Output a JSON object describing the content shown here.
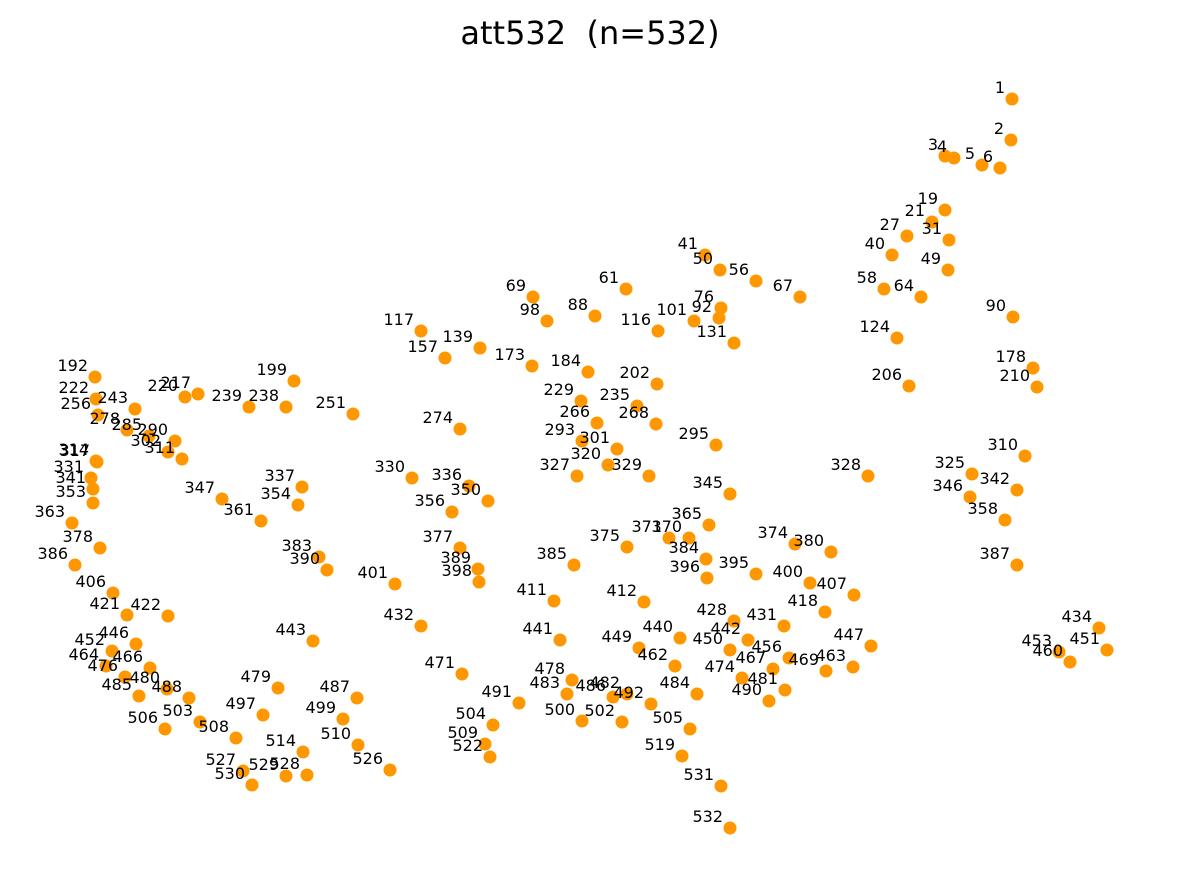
{
  "chart_data": {
    "type": "scatter",
    "title": "att532  (n=532)",
    "xlabel": "",
    "ylabel": "",
    "axes_visible": false,
    "grid": false,
    "point_color": "#FF9800",
    "label_color": "#000000",
    "xlim": [
      0,
      1180
    ],
    "ylim": [
      0,
      884
    ],
    "series": [
      {
        "points": [
          {
            "id": "1",
            "x": 1012,
            "y": 99
          },
          {
            "id": "2",
            "x": 1011,
            "y": 140
          },
          {
            "id": "3",
            "x": 945,
            "y": 156
          },
          {
            "id": "4",
            "x": 954,
            "y": 158
          },
          {
            "id": "5",
            "x": 982,
            "y": 165
          },
          {
            "id": "6",
            "x": 1000,
            "y": 168
          },
          {
            "id": "19",
            "x": 945,
            "y": 210
          },
          {
            "id": "21",
            "x": 932,
            "y": 222
          },
          {
            "id": "27",
            "x": 907,
            "y": 236
          },
          {
            "id": "31",
            "x": 949,
            "y": 240
          },
          {
            "id": "40",
            "x": 892,
            "y": 255
          },
          {
            "id": "41",
            "x": 705,
            "y": 255
          },
          {
            "id": "49",
            "x": 948,
            "y": 270
          },
          {
            "id": "50",
            "x": 720,
            "y": 270
          },
          {
            "id": "56",
            "x": 756,
            "y": 281
          },
          {
            "id": "58",
            "x": 884,
            "y": 289
          },
          {
            "id": "61",
            "x": 626,
            "y": 289
          },
          {
            "id": "64",
            "x": 921,
            "y": 297
          },
          {
            "id": "67",
            "x": 800,
            "y": 297
          },
          {
            "id": "69",
            "x": 533,
            "y": 297
          },
          {
            "id": "76",
            "x": 721,
            "y": 308
          },
          {
            "id": "88",
            "x": 595,
            "y": 316
          },
          {
            "id": "90",
            "x": 1013,
            "y": 317
          },
          {
            "id": "92",
            "x": 719,
            "y": 318
          },
          {
            "id": "98",
            "x": 547,
            "y": 321
          },
          {
            "id": "101",
            "x": 694,
            "y": 321
          },
          {
            "id": "116",
            "x": 658,
            "y": 331
          },
          {
            "id": "117",
            "x": 421,
            "y": 331
          },
          {
            "id": "124",
            "x": 897,
            "y": 338
          },
          {
            "id": "131",
            "x": 734,
            "y": 343
          },
          {
            "id": "139",
            "x": 480,
            "y": 348
          },
          {
            "id": "157",
            "x": 445,
            "y": 358
          },
          {
            "id": "173",
            "x": 532,
            "y": 366
          },
          {
            "id": "178",
            "x": 1033,
            "y": 368
          },
          {
            "id": "184",
            "x": 588,
            "y": 372
          },
          {
            "id": "192",
            "x": 95,
            "y": 377
          },
          {
            "id": "199",
            "x": 294,
            "y": 381
          },
          {
            "id": "202",
            "x": 657,
            "y": 384
          },
          {
            "id": "206",
            "x": 909,
            "y": 386
          },
          {
            "id": "210",
            "x": 1037,
            "y": 387
          },
          {
            "id": "217",
            "x": 198,
            "y": 394
          },
          {
            "id": "220",
            "x": 185,
            "y": 397
          },
          {
            "id": "222",
            "x": 96,
            "y": 399
          },
          {
            "id": "229",
            "x": 581,
            "y": 401
          },
          {
            "id": "235",
            "x": 637,
            "y": 406
          },
          {
            "id": "238",
            "x": 286,
            "y": 407
          },
          {
            "id": "239",
            "x": 249,
            "y": 407
          },
          {
            "id": "243",
            "x": 135,
            "y": 409
          },
          {
            "id": "251",
            "x": 353,
            "y": 414
          },
          {
            "id": "256",
            "x": 98,
            "y": 415
          },
          {
            "id": "266",
            "x": 597,
            "y": 423
          },
          {
            "id": "268",
            "x": 656,
            "y": 424
          },
          {
            "id": "274",
            "x": 460,
            "y": 429
          },
          {
            "id": "278",
            "x": 127,
            "y": 430
          },
          {
            "id": "285",
            "x": 149,
            "y": 436
          },
          {
            "id": "290",
            "x": 175,
            "y": 441
          },
          {
            "id": "293",
            "x": 582,
            "y": 441
          },
          {
            "id": "295",
            "x": 716,
            "y": 445
          },
          {
            "id": "301",
            "x": 617,
            "y": 449
          },
          {
            "id": "302",
            "x": 168,
            "y": 452
          },
          {
            "id": "310",
            "x": 1025,
            "y": 456
          },
          {
            "id": "311",
            "x": 182,
            "y": 459
          },
          {
            "id": "314",
            "x": 96,
            "y": 461
          },
          {
            "id": "317",
            "x": 97,
            "y": 462
          },
          {
            "id": "320",
            "x": 608,
            "y": 465
          },
          {
            "id": "325",
            "x": 972,
            "y": 474
          },
          {
            "id": "327",
            "x": 577,
            "y": 476
          },
          {
            "id": "328",
            "x": 868,
            "y": 476
          },
          {
            "id": "329",
            "x": 649,
            "y": 476
          },
          {
            "id": "330",
            "x": 412,
            "y": 478
          },
          {
            "id": "331",
            "x": 91,
            "y": 478
          },
          {
            "id": "336",
            "x": 469,
            "y": 486
          },
          {
            "id": "337",
            "x": 302,
            "y": 487
          },
          {
            "id": "341",
            "x": 93,
            "y": 489
          },
          {
            "id": "342",
            "x": 1017,
            "y": 490
          },
          {
            "id": "345",
            "x": 730,
            "y": 494
          },
          {
            "id": "346",
            "x": 970,
            "y": 497
          },
          {
            "id": "347",
            "x": 222,
            "y": 499
          },
          {
            "id": "350",
            "x": 488,
            "y": 501
          },
          {
            "id": "353",
            "x": 93,
            "y": 503
          },
          {
            "id": "354",
            "x": 298,
            "y": 505
          },
          {
            "id": "356",
            "x": 452,
            "y": 512
          },
          {
            "id": "358",
            "x": 1005,
            "y": 520
          },
          {
            "id": "361",
            "x": 261,
            "y": 521
          },
          {
            "id": "363",
            "x": 72,
            "y": 523
          },
          {
            "id": "365",
            "x": 709,
            "y": 525
          },
          {
            "id": "370",
            "x": 689,
            "y": 538
          },
          {
            "id": "371",
            "x": 669,
            "y": 538
          },
          {
            "id": "374",
            "x": 795,
            "y": 544
          },
          {
            "id": "375",
            "x": 627,
            "y": 547
          },
          {
            "id": "377",
            "x": 460,
            "y": 548
          },
          {
            "id": "378",
            "x": 100,
            "y": 548
          },
          {
            "id": "380",
            "x": 831,
            "y": 552
          },
          {
            "id": "383",
            "x": 319,
            "y": 557
          },
          {
            "id": "384",
            "x": 706,
            "y": 559
          },
          {
            "id": "385",
            "x": 574,
            "y": 565
          },
          {
            "id": "386",
            "x": 75,
            "y": 565
          },
          {
            "id": "387",
            "x": 1017,
            "y": 565
          },
          {
            "id": "389",
            "x": 478,
            "y": 569
          },
          {
            "id": "390",
            "x": 327,
            "y": 570
          },
          {
            "id": "395",
            "x": 756,
            "y": 574
          },
          {
            "id": "396",
            "x": 707,
            "y": 578
          },
          {
            "id": "398",
            "x": 479,
            "y": 582
          },
          {
            "id": "400",
            "x": 810,
            "y": 583
          },
          {
            "id": "401",
            "x": 395,
            "y": 584
          },
          {
            "id": "406",
            "x": 113,
            "y": 593
          },
          {
            "id": "407",
            "x": 854,
            "y": 595
          },
          {
            "id": "411",
            "x": 554,
            "y": 601
          },
          {
            "id": "412",
            "x": 644,
            "y": 602
          },
          {
            "id": "418",
            "x": 825,
            "y": 612
          },
          {
            "id": "421",
            "x": 127,
            "y": 615
          },
          {
            "id": "422",
            "x": 168,
            "y": 616
          },
          {
            "id": "428",
            "x": 734,
            "y": 621
          },
          {
            "id": "431",
            "x": 784,
            "y": 626
          },
          {
            "id": "432",
            "x": 421,
            "y": 626
          },
          {
            "id": "434",
            "x": 1099,
            "y": 628
          },
          {
            "id": "440",
            "x": 680,
            "y": 638
          },
          {
            "id": "441",
            "x": 560,
            "y": 640
          },
          {
            "id": "442",
            "x": 748,
            "y": 640
          },
          {
            "id": "443",
            "x": 313,
            "y": 641
          },
          {
            "id": "446",
            "x": 136,
            "y": 644
          },
          {
            "id": "447",
            "x": 871,
            "y": 646
          },
          {
            "id": "449",
            "x": 639,
            "y": 648
          },
          {
            "id": "450",
            "x": 730,
            "y": 650
          },
          {
            "id": "451",
            "x": 1107,
            "y": 650
          },
          {
            "id": "452",
            "x": 112,
            "y": 651
          },
          {
            "id": "453",
            "x": 1059,
            "y": 652
          },
          {
            "id": "456",
            "x": 789,
            "y": 658
          },
          {
            "id": "460",
            "x": 1070,
            "y": 662
          },
          {
            "id": "462",
            "x": 675,
            "y": 666
          },
          {
            "id": "463",
            "x": 853,
            "y": 667
          },
          {
            "id": "464",
            "x": 106,
            "y": 666
          },
          {
            "id": "466",
            "x": 150,
            "y": 668
          },
          {
            "id": "467",
            "x": 773,
            "y": 669
          },
          {
            "id": "469",
            "x": 826,
            "y": 671
          },
          {
            "id": "471",
            "x": 462,
            "y": 674
          },
          {
            "id": "474",
            "x": 742,
            "y": 678
          },
          {
            "id": "476",
            "x": 125,
            "y": 677
          },
          {
            "id": "478",
            "x": 572,
            "y": 680
          },
          {
            "id": "479",
            "x": 278,
            "y": 688
          },
          {
            "id": "480",
            "x": 167,
            "y": 689
          },
          {
            "id": "481",
            "x": 785,
            "y": 690
          },
          {
            "id": "482",
            "x": 627,
            "y": 694
          },
          {
            "id": "483",
            "x": 567,
            "y": 694
          },
          {
            "id": "484",
            "x": 697,
            "y": 694
          },
          {
            "id": "485",
            "x": 139,
            "y": 696
          },
          {
            "id": "486",
            "x": 613,
            "y": 697
          },
          {
            "id": "487",
            "x": 357,
            "y": 698
          },
          {
            "id": "488",
            "x": 189,
            "y": 698
          },
          {
            "id": "490",
            "x": 769,
            "y": 701
          },
          {
            "id": "491",
            "x": 519,
            "y": 703
          },
          {
            "id": "492",
            "x": 651,
            "y": 704
          },
          {
            "id": "497",
            "x": 263,
            "y": 715
          },
          {
            "id": "499",
            "x": 343,
            "y": 719
          },
          {
            "id": "500",
            "x": 582,
            "y": 721
          },
          {
            "id": "502",
            "x": 622,
            "y": 722
          },
          {
            "id": "503",
            "x": 200,
            "y": 722
          },
          {
            "id": "504",
            "x": 493,
            "y": 725
          },
          {
            "id": "505",
            "x": 690,
            "y": 729
          },
          {
            "id": "506",
            "x": 165,
            "y": 729
          },
          {
            "id": "508",
            "x": 236,
            "y": 738
          },
          {
            "id": "509",
            "x": 485,
            "y": 744
          },
          {
            "id": "510",
            "x": 358,
            "y": 745
          },
          {
            "id": "514",
            "x": 303,
            "y": 752
          },
          {
            "id": "519",
            "x": 682,
            "y": 756
          },
          {
            "id": "522",
            "x": 490,
            "y": 757
          },
          {
            "id": "526",
            "x": 390,
            "y": 770
          },
          {
            "id": "527",
            "x": 243,
            "y": 771
          },
          {
            "id": "528",
            "x": 307,
            "y": 775
          },
          {
            "id": "529",
            "x": 286,
            "y": 776
          },
          {
            "id": "530",
            "x": 252,
            "y": 785
          },
          {
            "id": "531",
            "x": 721,
            "y": 786
          },
          {
            "id": "532",
            "x": 730,
            "y": 828
          }
        ]
      }
    ]
  }
}
